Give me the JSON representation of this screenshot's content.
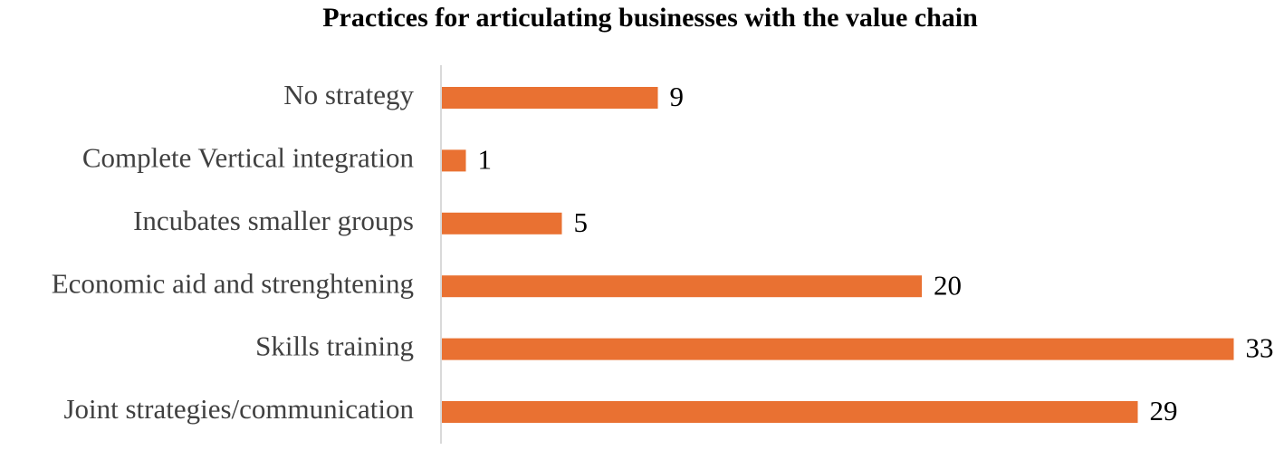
{
  "chart_data": {
    "type": "bar",
    "orientation": "horizontal",
    "title": "Practices for articulating businesses with the value chain",
    "categories": [
      "No strategy",
      "Complete Vertical integration",
      "Incubates smaller groups",
      "Economic aid and strenghtening",
      "Skills training",
      "Joint strategies/communication"
    ],
    "values": [
      9,
      1,
      5,
      20,
      33,
      29
    ],
    "color": "#e97132"
  }
}
